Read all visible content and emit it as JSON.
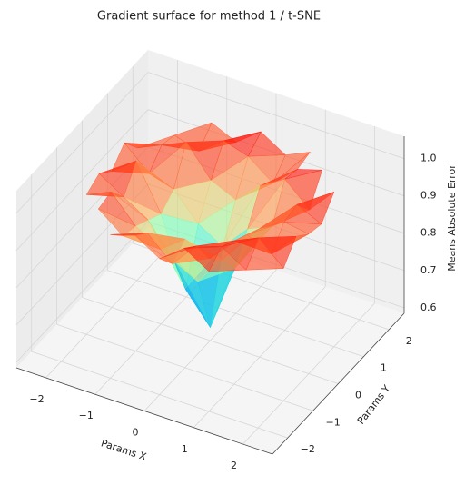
{
  "chart_data": {
    "type": "surface",
    "title": "Gradient surface for method 1 / t-SNE",
    "x_label": "Params X",
    "y_label": "Params Y",
    "z_label": "Means Absolute Error",
    "xlim": [
      -2.6,
      2.6
    ],
    "ylim": [
      -2.6,
      2.6
    ],
    "zlim": [
      0.585,
      1.06
    ],
    "xticks": [
      {
        "value": -2,
        "label": "−2"
      },
      {
        "value": -1,
        "label": "−1"
      },
      0,
      1,
      2
    ],
    "yticks": [
      {
        "value": -2,
        "label": "−2"
      },
      {
        "value": -1,
        "label": "−1"
      },
      0,
      1,
      2
    ],
    "zticks": [
      0.6,
      0.7,
      0.8,
      0.9,
      {
        "value": 1,
        "label": "1.0"
      }
    ],
    "grid": true,
    "colormap": "rainbow",
    "x": [
      -2,
      -1.5,
      -1,
      -0.5,
      0,
      0.5,
      1,
      1.5,
      2
    ],
    "y": [
      -2,
      -1.5,
      -1,
      -0.5,
      0,
      0.5,
      1,
      1.5,
      2
    ],
    "z": [
      [
        null,
        null,
        0.97,
        0.99,
        0.95,
        1.0,
        0.96,
        null,
        null
      ],
      [
        null,
        0.98,
        0.93,
        0.96,
        0.9,
        0.97,
        0.99,
        0.95,
        null
      ],
      [
        0.96,
        0.99,
        0.92,
        0.88,
        0.93,
        0.9,
        0.97,
        1.0,
        0.94
      ],
      [
        0.98,
        0.94,
        0.9,
        0.82,
        0.78,
        0.86,
        0.95,
        0.92,
        0.99
      ],
      [
        0.95,
        1.0,
        0.88,
        0.7,
        0.62,
        0.8,
        0.93,
        0.97,
        0.96
      ],
      [
        0.99,
        0.93,
        0.91,
        0.84,
        0.8,
        0.87,
        0.9,
        0.98,
        0.95
      ],
      [
        0.94,
        0.97,
        1.0,
        0.92,
        0.89,
        0.95,
        0.99,
        0.93,
        1.0
      ],
      [
        null,
        0.96,
        0.94,
        0.99,
        0.97,
        0.92,
        0.98,
        1.0,
        null
      ],
      [
        null,
        null,
        0.98,
        0.95,
        1.0,
        0.96,
        0.99,
        null,
        null
      ]
    ]
  }
}
